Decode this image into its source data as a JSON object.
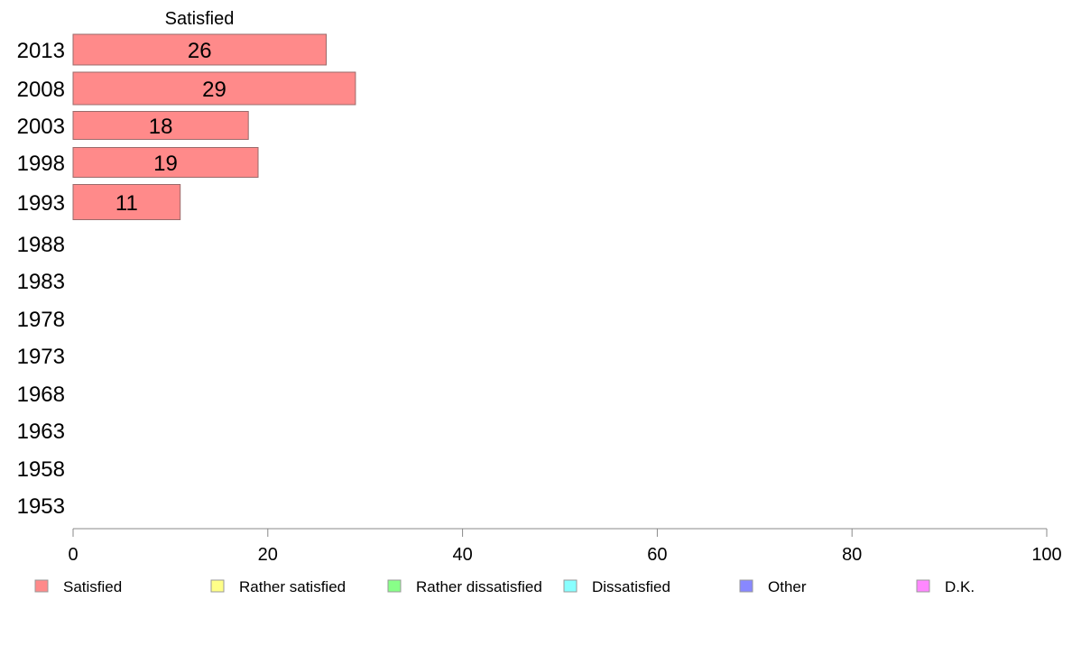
{
  "chart_data": {
    "type": "bar",
    "orientation": "horizontal",
    "stacked": true,
    "categories": [
      "2013",
      "2008",
      "2003",
      "1998",
      "1993",
      "1988",
      "1983",
      "1978",
      "1973",
      "1968",
      "1963",
      "1958",
      "1953"
    ],
    "series": [
      {
        "name": "Satisfied",
        "color": "#ff8a8a",
        "values": [
          26,
          29,
          18,
          19,
          11,
          null,
          null,
          null,
          null,
          null,
          null,
          null,
          null
        ]
      }
    ],
    "series_title": "Satisfied",
    "xlim": [
      0,
      100
    ],
    "xticks": [
      0,
      20,
      40,
      60,
      80,
      100
    ],
    "legend": {
      "placement": "bottom",
      "items": [
        {
          "label": "Satisfied",
          "color": "#ff8a8a"
        },
        {
          "label": "Rather satisfied",
          "color": "#ffff88"
        },
        {
          "label": "Rather dissatisfied",
          "color": "#88ff88"
        },
        {
          "label": "Dissatisfied",
          "color": "#88ffff"
        },
        {
          "label": "Other",
          "color": "#8888ff"
        },
        {
          "label": "D.K.",
          "color": "#ff88ff"
        }
      ]
    },
    "grid": false
  }
}
